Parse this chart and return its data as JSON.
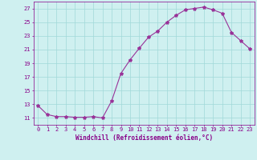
{
  "x": [
    0,
    1,
    2,
    3,
    4,
    5,
    6,
    7,
    8,
    9,
    10,
    11,
    12,
    13,
    14,
    15,
    16,
    17,
    18,
    19,
    20,
    21,
    22,
    23
  ],
  "y": [
    12.8,
    11.5,
    11.2,
    11.2,
    11.1,
    11.1,
    11.2,
    11.0,
    13.5,
    17.5,
    19.5,
    21.2,
    22.8,
    23.7,
    25.0,
    26.0,
    26.8,
    27.0,
    27.2,
    26.8,
    26.3,
    23.5,
    22.3,
    21.1
  ],
  "line_color": "#993399",
  "marker": "*",
  "bg_color": "#cff0f0",
  "grid_color": "#a0d8d8",
  "xlabel": "Windchill (Refroidissement éolien,°C)",
  "ylim": [
    10,
    28
  ],
  "yticks": [
    11,
    13,
    15,
    17,
    19,
    21,
    23,
    25,
    27
  ],
  "xticks": [
    0,
    1,
    2,
    3,
    4,
    5,
    6,
    7,
    8,
    9,
    10,
    11,
    12,
    13,
    14,
    15,
    16,
    17,
    18,
    19,
    20,
    21,
    22,
    23
  ],
  "text_color": "#880088",
  "tick_fontsize": 5.0,
  "label_fontsize": 5.5
}
